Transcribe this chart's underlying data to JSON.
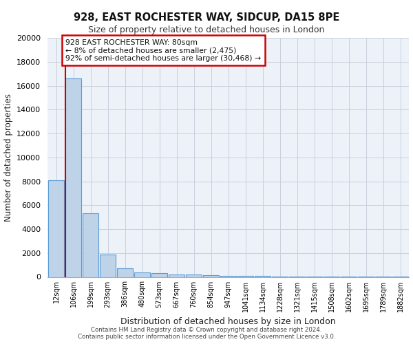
{
  "title1": "928, EAST ROCHESTER WAY, SIDCUP, DA15 8PE",
  "title2": "Size of property relative to detached houses in London",
  "xlabel": "Distribution of detached houses by size in London",
  "ylabel": "Number of detached properties",
  "bar_labels": [
    "12sqm",
    "106sqm",
    "199sqm",
    "293sqm",
    "386sqm",
    "480sqm",
    "573sqm",
    "667sqm",
    "760sqm",
    "854sqm",
    "947sqm",
    "1041sqm",
    "1134sqm",
    "1228sqm",
    "1321sqm",
    "1415sqm",
    "1508sqm",
    "1602sqm",
    "1695sqm",
    "1789sqm",
    "1882sqm"
  ],
  "bar_values": [
    8100,
    16600,
    5300,
    1850,
    700,
    380,
    290,
    230,
    220,
    150,
    100,
    80,
    60,
    50,
    40,
    30,
    20,
    15,
    10,
    8,
    5
  ],
  "bar_color": "#bed3e8",
  "bar_edge_color": "#5b9bd5",
  "highlight_line_color": "#cc0000",
  "annotation_line1": "928 EAST ROCHESTER WAY: 80sqm",
  "annotation_line2": "← 8% of detached houses are smaller (2,475)",
  "annotation_line3": "92% of semi-detached houses are larger (30,468) →",
  "annotation_box_color": "#cc0000",
  "ylim": [
    0,
    20000
  ],
  "yticks": [
    0,
    2000,
    4000,
    6000,
    8000,
    10000,
    12000,
    14000,
    16000,
    18000,
    20000
  ],
  "grid_color": "#c8d0dc",
  "bg_color": "#edf1f8",
  "footer1": "Contains HM Land Registry data © Crown copyright and database right 2024.",
  "footer2": "Contains public sector information licensed under the Open Government Licence v3.0."
}
